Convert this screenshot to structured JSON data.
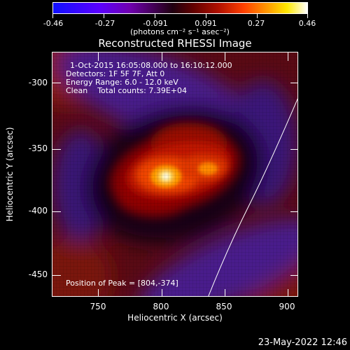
{
  "colorbar": {
    "tick_labels": [
      "-0.46",
      "-0.27",
      "-0.091",
      "0.091",
      "0.27",
      "0.46"
    ],
    "units_label": "(photons cm⁻² s⁻¹ asec⁻²)",
    "range": [
      -0.46,
      0.46
    ],
    "colors": [
      "#0000ff",
      "#6a00ff",
      "#000000",
      "#8a0000",
      "#ff5a00",
      "#ffe000",
      "#ffffff"
    ]
  },
  "plot": {
    "title": "Reconstructed RHESSI Image",
    "info_lines": [
      "1-Oct-2015 16:05:08.000 to 16:10:12.000",
      "Detectors: 1F 5F 7F, Att 0",
      "Energy Range: 6.0 - 12.0 keV",
      "Clean    Total counts: 7.39E+04"
    ],
    "peak_label": "Position of Peak = [804,-374]",
    "xlabel": "Heliocentric X (arcsec)",
    "ylabel": "Heliocentric Y (arcsec)",
    "xticks": [
      "750",
      "800",
      "850",
      "900"
    ],
    "yticks": [
      "-300",
      "-350",
      "-400",
      "-450"
    ],
    "xlim": [
      715,
      905
    ],
    "ylim": [
      -470,
      -275
    ]
  },
  "footer": {
    "timestamp": "23-May-2022 12:46"
  }
}
